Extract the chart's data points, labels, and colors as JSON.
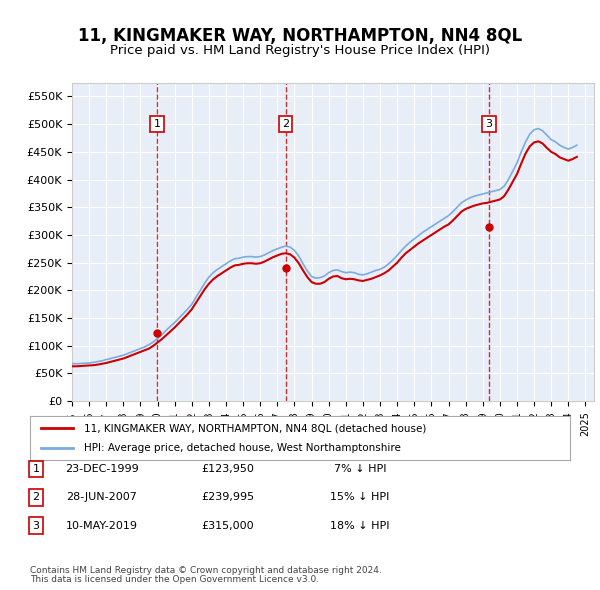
{
  "title": "11, KINGMAKER WAY, NORTHAMPTON, NN4 8QL",
  "subtitle": "Price paid vs. HM Land Registry's House Price Index (HPI)",
  "title_fontsize": 13,
  "subtitle_fontsize": 11,
  "bg_color": "#e8eef8",
  "plot_bg": "#e8eef8",
  "grid_color": "#ffffff",
  "hpi_color": "#7aacdc",
  "price_color": "#cc0000",
  "ylim": [
    0,
    575000
  ],
  "yticks": [
    0,
    50000,
    100000,
    150000,
    200000,
    250000,
    300000,
    350000,
    400000,
    450000,
    500000,
    550000
  ],
  "ytick_labels": [
    "£0",
    "£50K",
    "£100K",
    "£150K",
    "£200K",
    "£250K",
    "£300K",
    "£350K",
    "£400K",
    "£450K",
    "£500K",
    "£550K"
  ],
  "sale_dates": [
    "1999-12-23",
    "2007-06-28",
    "2019-05-10"
  ],
  "sale_prices": [
    123950,
    239995,
    315000
  ],
  "sale_labels": [
    "1",
    "2",
    "3"
  ],
  "sale_info": [
    [
      "1",
      "23-DEC-1999",
      "£123,950",
      "7% ↓ HPI"
    ],
    [
      "2",
      "28-JUN-2007",
      "£239,995",
      "15% ↓ HPI"
    ],
    [
      "3",
      "10-MAY-2019",
      "£315,000",
      "18% ↓ HPI"
    ]
  ],
  "legend_line1": "11, KINGMAKER WAY, NORTHAMPTON, NN4 8QL (detached house)",
  "legend_line2": "HPI: Average price, detached house, West Northamptonshire",
  "footer1": "Contains HM Land Registry data © Crown copyright and database right 2024.",
  "footer2": "This data is licensed under the Open Government Licence v3.0.",
  "hpi_data_x": [
    1995.0,
    1995.25,
    1995.5,
    1995.75,
    1996.0,
    1996.25,
    1996.5,
    1996.75,
    1997.0,
    1997.25,
    1997.5,
    1997.75,
    1998.0,
    1998.25,
    1998.5,
    1998.75,
    1999.0,
    1999.25,
    1999.5,
    1999.75,
    2000.0,
    2000.25,
    2000.5,
    2000.75,
    2001.0,
    2001.25,
    2001.5,
    2001.75,
    2002.0,
    2002.25,
    2002.5,
    2002.75,
    2003.0,
    2003.25,
    2003.5,
    2003.75,
    2004.0,
    2004.25,
    2004.5,
    2004.75,
    2005.0,
    2005.25,
    2005.5,
    2005.75,
    2006.0,
    2006.25,
    2006.5,
    2006.75,
    2007.0,
    2007.25,
    2007.5,
    2007.75,
    2008.0,
    2008.25,
    2008.5,
    2008.75,
    2009.0,
    2009.25,
    2009.5,
    2009.75,
    2010.0,
    2010.25,
    2010.5,
    2010.75,
    2011.0,
    2011.25,
    2011.5,
    2011.75,
    2012.0,
    2012.25,
    2012.5,
    2012.75,
    2013.0,
    2013.25,
    2013.5,
    2013.75,
    2014.0,
    2014.25,
    2014.5,
    2014.75,
    2015.0,
    2015.25,
    2015.5,
    2015.75,
    2016.0,
    2016.25,
    2016.5,
    2016.75,
    2017.0,
    2017.25,
    2017.5,
    2017.75,
    2018.0,
    2018.25,
    2018.5,
    2018.75,
    2019.0,
    2019.25,
    2019.5,
    2019.75,
    2020.0,
    2020.25,
    2020.5,
    2020.75,
    2021.0,
    2021.25,
    2021.5,
    2021.75,
    2022.0,
    2022.25,
    2022.5,
    2022.75,
    2023.0,
    2023.25,
    2023.5,
    2023.75,
    2024.0,
    2024.25,
    2024.5
  ],
  "hpi_data_y": [
    68000,
    67500,
    68000,
    68500,
    69000,
    70000,
    71500,
    73000,
    75000,
    77000,
    79000,
    81000,
    83000,
    86000,
    89000,
    92000,
    95000,
    98000,
    102000,
    107000,
    113000,
    120000,
    128000,
    135000,
    142000,
    150000,
    158000,
    166000,
    175000,
    188000,
    200000,
    213000,
    224000,
    232000,
    238000,
    243000,
    248000,
    253000,
    257000,
    258000,
    260000,
    261000,
    261000,
    260000,
    261000,
    264000,
    268000,
    272000,
    275000,
    278000,
    280000,
    278000,
    272000,
    262000,
    248000,
    235000,
    225000,
    222000,
    223000,
    226000,
    232000,
    236000,
    237000,
    234000,
    232000,
    233000,
    232000,
    229000,
    228000,
    230000,
    233000,
    236000,
    238000,
    242000,
    248000,
    255000,
    263000,
    272000,
    280000,
    287000,
    293000,
    299000,
    305000,
    310000,
    315000,
    320000,
    325000,
    330000,
    335000,
    342000,
    350000,
    358000,
    363000,
    367000,
    370000,
    372000,
    374000,
    376000,
    378000,
    380000,
    382000,
    388000,
    400000,
    415000,
    430000,
    450000,
    468000,
    482000,
    490000,
    492000,
    488000,
    480000,
    472000,
    468000,
    462000,
    458000,
    455000,
    458000,
    462000
  ],
  "price_line_x": [
    1995.0,
    1995.25,
    1995.5,
    1995.75,
    1996.0,
    1996.25,
    1996.5,
    1996.75,
    1997.0,
    1997.25,
    1997.5,
    1997.75,
    1998.0,
    1998.25,
    1998.5,
    1998.75,
    1999.0,
    1999.25,
    1999.5,
    1999.75,
    2000.0,
    2000.25,
    2000.5,
    2000.75,
    2001.0,
    2001.25,
    2001.5,
    2001.75,
    2002.0,
    2002.25,
    2002.5,
    2002.75,
    2003.0,
    2003.25,
    2003.5,
    2003.75,
    2004.0,
    2004.25,
    2004.5,
    2004.75,
    2005.0,
    2005.25,
    2005.5,
    2005.75,
    2006.0,
    2006.25,
    2006.5,
    2006.75,
    2007.0,
    2007.25,
    2007.5,
    2007.75,
    2008.0,
    2008.25,
    2008.5,
    2008.75,
    2009.0,
    2009.25,
    2009.5,
    2009.75,
    2010.0,
    2010.25,
    2010.5,
    2010.75,
    2011.0,
    2011.25,
    2011.5,
    2011.75,
    2012.0,
    2012.25,
    2012.5,
    2012.75,
    2013.0,
    2013.25,
    2013.5,
    2013.75,
    2014.0,
    2014.25,
    2014.5,
    2014.75,
    2015.0,
    2015.25,
    2015.5,
    2015.75,
    2016.0,
    2016.25,
    2016.5,
    2016.75,
    2017.0,
    2017.25,
    2017.5,
    2017.75,
    2018.0,
    2018.25,
    2018.5,
    2018.75,
    2019.0,
    2019.25,
    2019.5,
    2019.75,
    2020.0,
    2020.25,
    2020.5,
    2020.75,
    2021.0,
    2021.25,
    2021.5,
    2021.75,
    2022.0,
    2022.25,
    2022.5,
    2022.75,
    2023.0,
    2023.25,
    2023.5,
    2023.75,
    2024.0,
    2024.25,
    2024.5
  ],
  "price_line_y": [
    63000,
    63000,
    63500,
    64000,
    64500,
    65000,
    66000,
    67500,
    69000,
    71000,
    73000,
    75000,
    77000,
    80000,
    83000,
    86000,
    89000,
    92000,
    95000,
    100000,
    106000,
    112000,
    119000,
    126000,
    133000,
    141000,
    149000,
    157000,
    166000,
    178000,
    190000,
    202000,
    212000,
    220000,
    226000,
    231000,
    236000,
    241000,
    245000,
    246000,
    248000,
    249000,
    249000,
    248000,
    249000,
    252000,
    256000,
    260000,
    263000,
    266000,
    267000,
    265000,
    259000,
    249000,
    236000,
    224000,
    215000,
    212000,
    212000,
    215000,
    221000,
    225000,
    226000,
    222000,
    220000,
    221000,
    220000,
    218000,
    217000,
    219000,
    221000,
    224000,
    227000,
    231000,
    236000,
    243000,
    250000,
    259000,
    267000,
    273000,
    279000,
    285000,
    290000,
    295000,
    300000,
    305000,
    310000,
    315000,
    319000,
    326000,
    334000,
    342000,
    347000,
    350000,
    353000,
    355000,
    357000,
    358000,
    360000,
    362000,
    364000,
    370000,
    382000,
    396000,
    410000,
    429000,
    447000,
    460000,
    467000,
    469000,
    465000,
    457000,
    450000,
    446000,
    440000,
    437000,
    434000,
    437000,
    441000
  ]
}
